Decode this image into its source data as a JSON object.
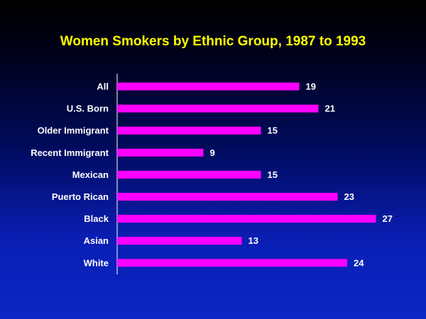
{
  "colors": {
    "title": "#ffff00",
    "bar": "#ff00ff",
    "text": "#ffffff",
    "axis": "#ffffff"
  },
  "chart_data": {
    "type": "bar",
    "orientation": "horizontal",
    "title": "Women Smokers by Ethnic Group, 1987 to 1993",
    "xlabel": "",
    "ylabel": "",
    "categories": [
      "All",
      "U.S. Born",
      "Older Immigrant",
      "Recent Immigrant",
      "Mexican",
      "Puerto Rican",
      "Black",
      "Asian",
      "White"
    ],
    "values": [
      19,
      21,
      15,
      9,
      15,
      23,
      27,
      13,
      24
    ],
    "xlim": [
      0,
      27
    ],
    "grid": false,
    "legend": "none",
    "data_labels": true
  }
}
